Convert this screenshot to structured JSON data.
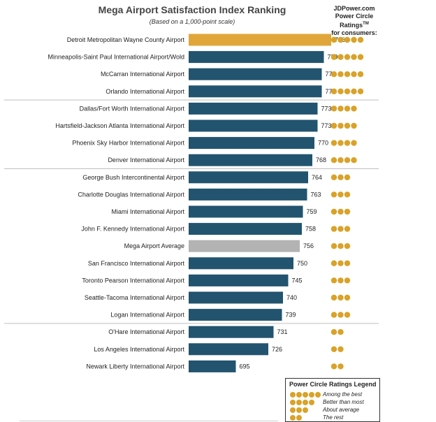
{
  "header": {
    "title": "Mega Airport Satisfaction Index Ranking",
    "subtitle": "(Based on a 1,000-point scale)",
    "ratings_line1": "JDPower.com",
    "ratings_line2": "Power Circle Ratings",
    "ratings_tm": "TM",
    "ratings_line3": "for consumers:"
  },
  "colors": {
    "top": "#e0a63a",
    "normal": "#22546f",
    "average": "#b3b3b3",
    "circle": "#d9a229"
  },
  "chart_data": {
    "type": "bar",
    "orientation": "horizontal",
    "title": "Mega Airport Satisfaction Index Ranking",
    "subtitle": "(Based on a 1,000-point scale)",
    "categories": [
      "Detroit Metropolitan Wayne County Airport",
      "Minneapolis-Saint Paul International Airport/Wold",
      "McCarran International Airport",
      "Orlando International Airport",
      "Dallas/Fort Worth International Airport",
      "Hartsfield-Jackson Atlanta International Airport",
      "Phoenix Sky Harbor International Airport",
      "Denver International Airport",
      "George Bush Intercontinental Airport",
      "Charlotte Douglas International Airport",
      "Miami International Airport",
      "John F. Kennedy International Airport",
      "Mega Airport Average",
      "San Francisco International Airport",
      "Toronto Pearson International Airport",
      "Seattle-Tacoma International Airport",
      "Logan International Airport",
      "O'Hare International Airport",
      "Los Angeles International Airport",
      "Newark Liberty International Airport"
    ],
    "values": [
      786,
      779,
      777,
      777,
      773,
      773,
      770,
      768,
      764,
      763,
      759,
      758,
      756,
      750,
      745,
      740,
      739,
      731,
      726,
      695
    ],
    "power_circles": [
      5,
      5,
      5,
      5,
      4,
      4,
      4,
      4,
      3,
      3,
      3,
      3,
      3,
      3,
      3,
      3,
      3,
      2,
      2,
      2
    ],
    "bar_kind": [
      "top",
      "normal",
      "normal",
      "normal",
      "normal",
      "normal",
      "normal",
      "normal",
      "normal",
      "normal",
      "normal",
      "normal",
      "average",
      "normal",
      "normal",
      "normal",
      "normal",
      "normal",
      "normal",
      "normal"
    ],
    "group_breaks_after": [
      3,
      7,
      16
    ],
    "xlim": [
      650,
      790
    ]
  },
  "legend": {
    "title": "Power Circle Ratings  Legend",
    "items": [
      {
        "circles": 5,
        "text": "Among the best"
      },
      {
        "circles": 4,
        "text": "Better than most"
      },
      {
        "circles": 3,
        "text": "About average"
      },
      {
        "circles": 2,
        "text": "The rest"
      }
    ]
  }
}
